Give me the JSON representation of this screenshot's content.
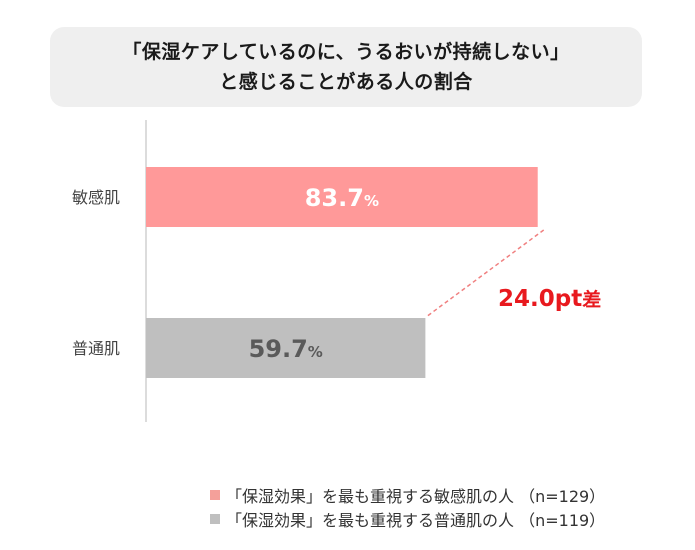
{
  "chart_data": {
    "type": "bar",
    "orientation": "horizontal",
    "title": "「保湿ケアしているのに、うるおいが持続しない」",
    "subtitle": "と感じることがある人の割合",
    "categories": [
      "敏感肌",
      "普通肌"
    ],
    "values": [
      83.7,
      59.7
    ],
    "value_unit": "%",
    "value_labels": [
      "83.7",
      "59.7"
    ],
    "colors": [
      "#ff9999",
      "#bfbfbf"
    ],
    "xlim": [
      0,
      100
    ],
    "grid": false,
    "difference_annotation": {
      "value": "24.0",
      "label": "24.0pt差",
      "color": "#e8191e"
    },
    "legend_position": "bottom-right",
    "legend": [
      {
        "label": "「保湿効果」を最も重視する敏感肌の人 （n=129）",
        "color": "#f4a09a"
      },
      {
        "label": "「保湿効果」を最も重視する普通肌の人 （n=119）",
        "color": "#bfbfbf"
      }
    ]
  }
}
